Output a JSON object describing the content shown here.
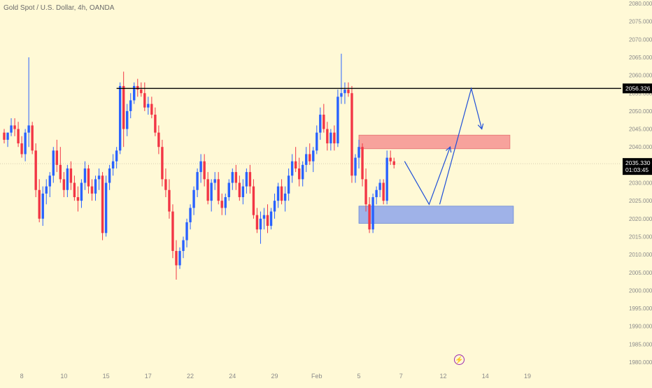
{
  "chart_data": {
    "type": "candlestick",
    "title": "Gold Spot / U.S. Dollar, 4h, OANDA",
    "ylim": [
      1980,
      2080
    ],
    "y_ticks": [
      "2080.000",
      "2075.000",
      "2070.000",
      "2065.000",
      "2060.000",
      "2055.000",
      "2050.000",
      "2045.000",
      "2040.000",
      "2035.000",
      "2030.000",
      "2025.000",
      "2020.000",
      "2015.000",
      "2010.000",
      "2005.000",
      "2000.000",
      "1995.000",
      "1990.000",
      "1985.000",
      "1980.000"
    ],
    "x_ticks": [
      {
        "label": "8",
        "i": 5
      },
      {
        "label": "10",
        "i": 17
      },
      {
        "label": "15",
        "i": 29
      },
      {
        "label": "17",
        "i": 41
      },
      {
        "label": "22",
        "i": 53
      },
      {
        "label": "24",
        "i": 65
      },
      {
        "label": "29",
        "i": 77
      },
      {
        "label": "Feb",
        "i": 89
      },
      {
        "label": "5",
        "i": 101
      },
      {
        "label": "7",
        "i": 113
      },
      {
        "label": "12",
        "i": 125
      },
      {
        "label": "14",
        "i": 137
      },
      {
        "label": "19",
        "i": 149
      }
    ],
    "colors": {
      "up": "#2962ff",
      "down": "#f23645",
      "background": "#fff9d6",
      "resistance": "#000000",
      "arrow": "#1f4fd8"
    },
    "candles": [
      [
        2044,
        2045,
        2041,
        2042
      ],
      [
        2042,
        2044,
        2040,
        2044
      ],
      [
        2044,
        2048,
        2043,
        2046
      ],
      [
        2046,
        2048,
        2043,
        2045
      ],
      [
        2045,
        2047,
        2040,
        2041
      ],
      [
        2041,
        2043,
        2037,
        2038
      ],
      [
        2038,
        2045,
        2036,
        2044
      ],
      [
        2044,
        2065,
        2040,
        2046
      ],
      [
        2046,
        2047,
        2038,
        2039
      ],
      [
        2039,
        2041,
        2026,
        2028
      ],
      [
        2028,
        2031,
        2019,
        2020
      ],
      [
        2020,
        2029,
        2018,
        2027
      ],
      [
        2027,
        2031,
        2024,
        2029
      ],
      [
        2029,
        2033,
        2026,
        2032
      ],
      [
        2032,
        2040,
        2030,
        2039
      ],
      [
        2039,
        2042,
        2033,
        2035
      ],
      [
        2035,
        2040,
        2030,
        2031
      ],
      [
        2031,
        2033,
        2026,
        2028
      ],
      [
        2028,
        2035,
        2026,
        2034
      ],
      [
        2034,
        2036,
        2028,
        2030
      ],
      [
        2030,
        2032,
        2025,
        2026
      ],
      [
        2026,
        2029,
        2022,
        2025
      ],
      [
        2025,
        2031,
        2023,
        2030
      ],
      [
        2030,
        2036,
        2028,
        2034
      ],
      [
        2034,
        2035,
        2027,
        2029
      ],
      [
        2029,
        2031,
        2025,
        2027
      ],
      [
        2027,
        2032,
        2025,
        2031
      ],
      [
        2031,
        2034,
        2028,
        2032
      ],
      [
        2032,
        2033,
        2014,
        2016
      ],
      [
        2016,
        2032,
        2015,
        2030
      ],
      [
        2030,
        2035,
        2028,
        2034
      ],
      [
        2034,
        2038,
        2032,
        2036
      ],
      [
        2036,
        2040,
        2034,
        2039
      ],
      [
        2039,
        2058,
        2038,
        2057
      ],
      [
        2057,
        2061,
        2040,
        2045
      ],
      [
        2045,
        2052,
        2043,
        2050
      ],
      [
        2050,
        2055,
        2048,
        2053
      ],
      [
        2053,
        2058,
        2052,
        2057
      ],
      [
        2057,
        2059,
        2054,
        2056
      ],
      [
        2056,
        2058,
        2054,
        2055
      ],
      [
        2055,
        2058,
        2050,
        2051
      ],
      [
        2051,
        2054,
        2049,
        2052
      ],
      [
        2052,
        2054,
        2048,
        2049
      ],
      [
        2049,
        2051,
        2043,
        2044
      ],
      [
        2044,
        2046,
        2038,
        2040
      ],
      [
        2040,
        2042,
        2029,
        2031
      ],
      [
        2031,
        2034,
        2026,
        2028
      ],
      [
        2028,
        2031,
        2020,
        2022
      ],
      [
        2022,
        2024,
        2009,
        2011
      ],
      [
        2011,
        2014,
        2003,
        2007
      ],
      [
        2007,
        2012,
        2006,
        2011
      ],
      [
        2011,
        2015,
        2009,
        2014
      ],
      [
        2014,
        2020,
        2012,
        2019
      ],
      [
        2019,
        2024,
        2017,
        2023
      ],
      [
        2023,
        2029,
        2021,
        2028
      ],
      [
        2028,
        2034,
        2026,
        2033
      ],
      [
        2033,
        2038,
        2030,
        2036
      ],
      [
        2036,
        2038,
        2029,
        2031
      ],
      [
        2031,
        2033,
        2024,
        2025
      ],
      [
        2025,
        2031,
        2022,
        2030
      ],
      [
        2030,
        2033,
        2028,
        2031
      ],
      [
        2031,
        2033,
        2024,
        2025
      ],
      [
        2025,
        2027,
        2021,
        2023
      ],
      [
        2023,
        2027,
        2021,
        2026
      ],
      [
        2026,
        2031,
        2025,
        2030
      ],
      [
        2030,
        2034,
        2028,
        2033
      ],
      [
        2033,
        2035,
        2028,
        2030
      ],
      [
        2030,
        2032,
        2025,
        2026
      ],
      [
        2026,
        2031,
        2024,
        2029
      ],
      [
        2029,
        2034,
        2027,
        2033
      ],
      [
        2033,
        2035,
        2027,
        2029
      ],
      [
        2029,
        2031,
        2020,
        2021
      ],
      [
        2021,
        2023,
        2016,
        2017
      ],
      [
        2017,
        2022,
        2013,
        2020
      ],
      [
        2020,
        2023,
        2017,
        2021
      ],
      [
        2021,
        2024,
        2016,
        2018
      ],
      [
        2018,
        2023,
        2017,
        2022
      ],
      [
        2022,
        2027,
        2020,
        2025
      ],
      [
        2025,
        2030,
        2023,
        2029
      ],
      [
        2029,
        2031,
        2024,
        2025
      ],
      [
        2025,
        2029,
        2022,
        2027
      ],
      [
        2027,
        2034,
        2025,
        2032
      ],
      [
        2032,
        2038,
        2030,
        2036
      ],
      [
        2036,
        2040,
        2033,
        2034
      ],
      [
        2034,
        2037,
        2029,
        2031
      ],
      [
        2031,
        2036,
        2029,
        2035
      ],
      [
        2035,
        2040,
        2033,
        2038
      ],
      [
        2038,
        2041,
        2035,
        2036
      ],
      [
        2036,
        2040,
        2033,
        2039
      ],
      [
        2039,
        2046,
        2038,
        2044
      ],
      [
        2044,
        2051,
        2042,
        2049
      ],
      [
        2049,
        2052,
        2044,
        2045
      ],
      [
        2045,
        2047,
        2039,
        2041
      ],
      [
        2041,
        2045,
        2039,
        2044
      ],
      [
        2044,
        2046,
        2039,
        2041
      ],
      [
        2041,
        2056,
        2040,
        2054
      ],
      [
        2054,
        2066,
        2052,
        2055
      ],
      [
        2055,
        2058,
        2052,
        2056
      ],
      [
        2056,
        2058,
        2054,
        2055
      ],
      [
        2055,
        2057,
        2030,
        2032
      ],
      [
        2032,
        2038,
        2030,
        2037
      ],
      [
        2037,
        2042,
        2034,
        2040
      ],
      [
        2040,
        2041,
        2029,
        2031
      ],
      [
        2031,
        2034,
        2022,
        2024
      ],
      [
        2024,
        2026,
        2016,
        2017
      ],
      [
        2017,
        2027,
        2016,
        2026
      ],
      [
        2026,
        2029,
        2024,
        2028
      ],
      [
        2028,
        2031,
        2026,
        2030
      ],
      [
        2030,
        2031,
        2024,
        2025
      ],
      [
        2025,
        2039,
        2024,
        2037
      ],
      [
        2037,
        2039,
        2035,
        2036
      ],
      [
        2036,
        2037,
        2034,
        2035
      ]
    ],
    "resistance_price": 2056.326,
    "price_tag": {
      "price": "2035.330",
      "countdown": "01:03:45"
    },
    "zones": [
      {
        "type": "supply",
        "top": 2043.3,
        "bottom": 2039.5,
        "x_start_i": 101,
        "x_end_i": 144,
        "fill": "#f7a29c"
      },
      {
        "type": "demand",
        "top": 2023.5,
        "bottom": 2018.7,
        "x_start_i": 101,
        "x_end_i": 145,
        "fill": "#9fb2e8"
      }
    ],
    "projection_path": [
      [
        114,
        2036
      ],
      [
        121,
        2024
      ],
      [
        127,
        2040
      ]
    ],
    "projection_path_2": [
      [
        124,
        2024
      ],
      [
        133,
        2056.3
      ],
      [
        136,
        2045
      ]
    ]
  }
}
